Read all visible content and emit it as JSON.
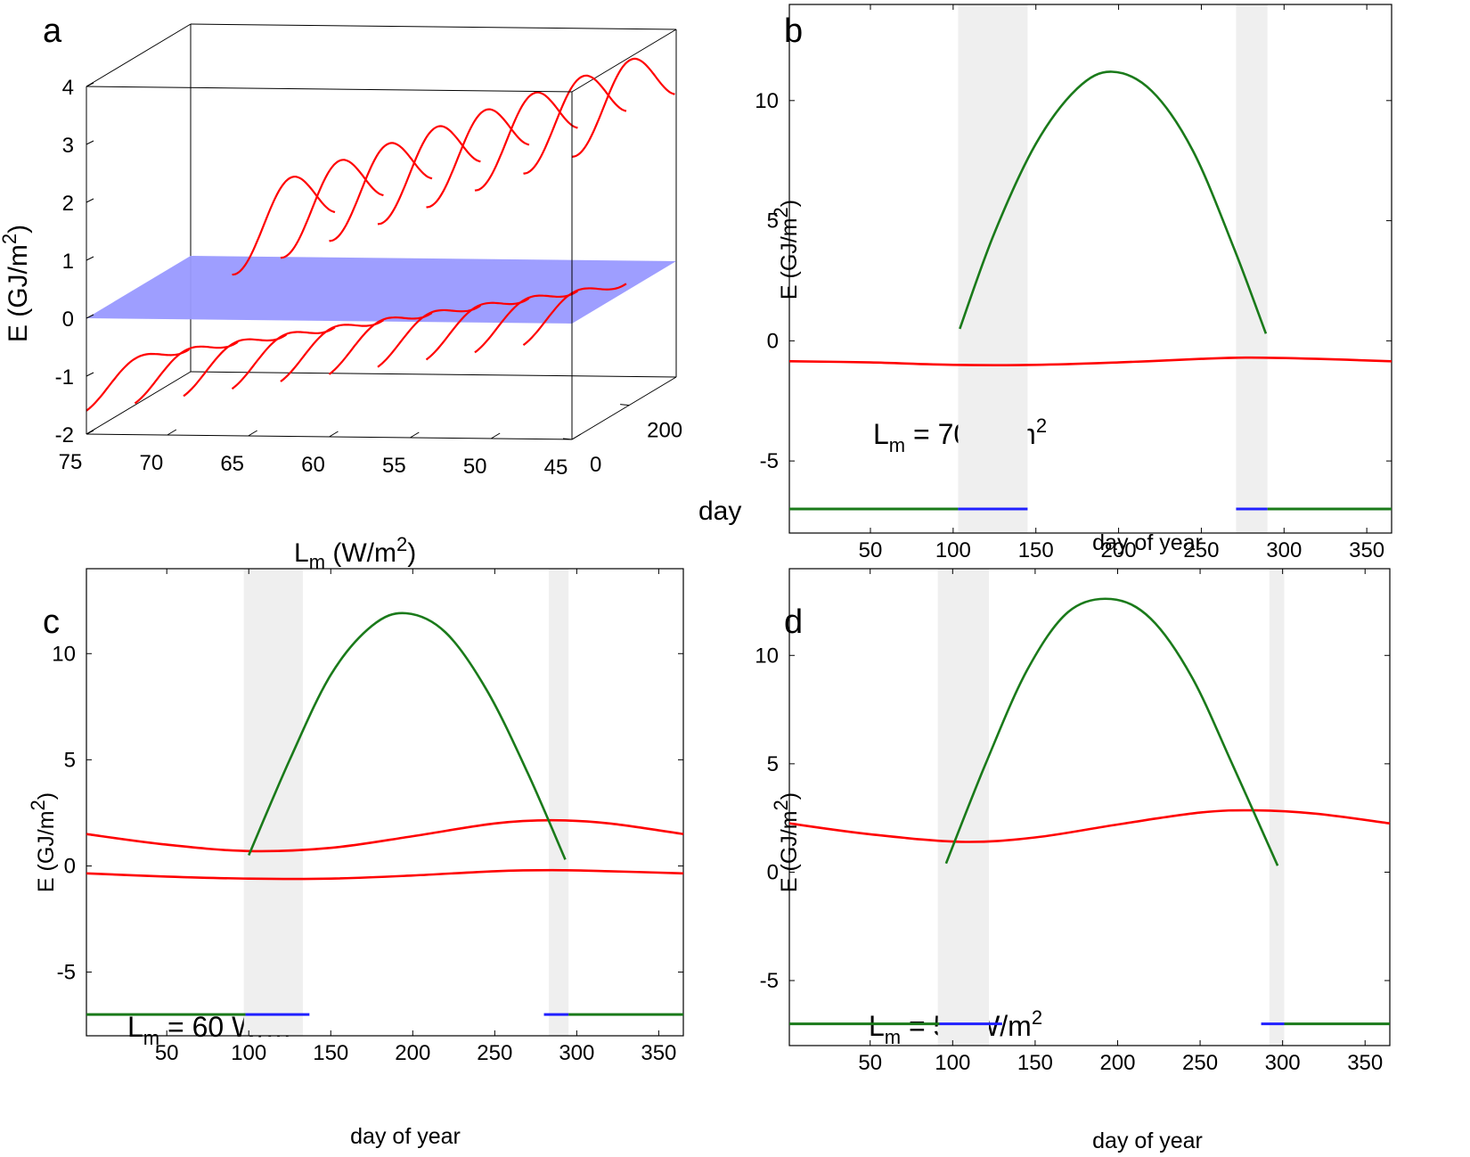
{
  "figure": {
    "panel_a": {
      "letter": "a",
      "z_label": "E (GJ/m",
      "z_label_sup": "2",
      "z_label_end": ")",
      "x_label_main": "L",
      "x_label_sub": "m",
      "x_label_rest": " (W/m",
      "x_label_sup": "2",
      "x_label_end": ")",
      "y_label": "day"
    },
    "panel_b": {
      "letter": "b",
      "ylabel_main": "E (GJ/m",
      "ylabel_sup": "2",
      "ylabel_end": ")",
      "xlabel": "day of year",
      "annot_main": "L",
      "annot_sub": "m",
      "annot_rest": " = 70 W/m",
      "annot_sup": "2"
    },
    "panel_c": {
      "letter": "c",
      "ylabel_main": "E (GJ/m",
      "ylabel_sup": "2",
      "ylabel_end": ")",
      "xlabel": "day of year",
      "annot_main": "L",
      "annot_sub": "m",
      "annot_rest": " = 60 W/m",
      "annot_sup": "2"
    },
    "panel_d": {
      "letter": "d",
      "ylabel_main": "E (GJ/m",
      "ylabel_sup": "2",
      "ylabel_end": ")",
      "xlabel": "day of year",
      "annot_main": "L",
      "annot_sub": "m",
      "annot_rest": " = 50 W/m",
      "annot_sup": "2"
    }
  },
  "colors": {
    "red": "#ff0000",
    "green": "#1a7a1a",
    "blue": "#2020ff",
    "plane": "#9999ff",
    "shade": "#efefef"
  },
  "chart_data": [
    {
      "panel": "a",
      "type": "line",
      "x_ticks": [
        75,
        70,
        65,
        60,
        55,
        50,
        45
      ],
      "y_ticks": [
        0,
        200
      ],
      "z_ticks": [
        -2,
        -1,
        0,
        1,
        2,
        3,
        4
      ],
      "xlim": [
        75,
        45
      ],
      "ylim": [
        0,
        365
      ],
      "zlim": [
        -2,
        4
      ],
      "plane_z": 0,
      "lower_branch_Lm": [
        75,
        72,
        69,
        66,
        63,
        60,
        57,
        54,
        51,
        48
      ],
      "upper_branch_Lm": [
        66,
        63,
        60,
        57,
        54,
        51,
        48,
        45
      ]
    },
    {
      "panel": "b",
      "type": "line",
      "x_ticks": [
        50,
        100,
        150,
        200,
        250,
        300,
        350
      ],
      "y_ticks": [
        -5,
        0,
        5,
        10
      ],
      "xlim": [
        1,
        365
      ],
      "ylim": [
        -8,
        14
      ],
      "shaded_days": [
        [
          103,
          145
        ],
        [
          271,
          290
        ]
      ],
      "series": [
        {
          "color": "red",
          "x": [
            1,
            50,
            100,
            150,
            200,
            250,
            280,
            320,
            365
          ],
          "y": [
            -0.85,
            -0.9,
            -1.0,
            -1.0,
            -0.9,
            -0.75,
            -0.7,
            -0.75,
            -0.85
          ]
        },
        {
          "color": "green",
          "x": [
            104,
            125,
            150,
            175,
            196,
            220,
            245,
            270,
            289
          ],
          "y": [
            0.5,
            4.5,
            8.2,
            10.5,
            11.2,
            10.4,
            7.9,
            3.8,
            0.3
          ]
        }
      ],
      "season_bar": [
        {
          "color": "green",
          "from": 1,
          "to": 103
        },
        {
          "color": "blue",
          "from": 103,
          "to": 145
        },
        {
          "color": "blue",
          "from": 271,
          "to": 290
        },
        {
          "color": "green",
          "from": 290,
          "to": 365
        }
      ],
      "season_bar_y": -7
    },
    {
      "panel": "c",
      "type": "line",
      "x_ticks": [
        50,
        100,
        150,
        200,
        250,
        300,
        350
      ],
      "y_ticks": [
        -5,
        0,
        5,
        10
      ],
      "xlim": [
        1,
        365
      ],
      "ylim": [
        -8,
        14
      ],
      "shaded_days": [
        [
          97,
          133
        ],
        [
          283,
          295
        ]
      ],
      "series": [
        {
          "color": "red",
          "x": [
            1,
            50,
            100,
            150,
            200,
            250,
            285,
            320,
            365
          ],
          "y": [
            1.5,
            1.0,
            0.7,
            0.85,
            1.4,
            2.0,
            2.15,
            2.0,
            1.5
          ]
        },
        {
          "color": "red",
          "x": [
            1,
            50,
            100,
            150,
            200,
            250,
            285,
            320,
            365
          ],
          "y": [
            -0.35,
            -0.5,
            -0.6,
            -0.6,
            -0.45,
            -0.25,
            -0.2,
            -0.25,
            -0.35
          ]
        },
        {
          "color": "green",
          "x": [
            100,
            125,
            150,
            175,
            196,
            220,
            245,
            270,
            293
          ],
          "y": [
            0.5,
            5.0,
            9.0,
            11.3,
            11.9,
            11.0,
            8.3,
            4.4,
            0.3
          ]
        }
      ],
      "season_bar": [
        {
          "color": "green",
          "from": 1,
          "to": 98
        },
        {
          "color": "blue",
          "from": 98,
          "to": 137
        },
        {
          "color": "blue",
          "from": 280,
          "to": 295
        },
        {
          "color": "green",
          "from": 295,
          "to": 365
        }
      ],
      "season_bar_y": -7
    },
    {
      "panel": "d",
      "type": "line",
      "x_ticks": [
        50,
        100,
        150,
        200,
        250,
        300,
        350
      ],
      "y_ticks": [
        -5,
        0,
        5,
        10
      ],
      "xlim": [
        1,
        365
      ],
      "ylim": [
        -8,
        14
      ],
      "shaded_days": [
        [
          91,
          122
        ],
        [
          292,
          301
        ]
      ],
      "series": [
        {
          "color": "red",
          "x": [
            1,
            50,
            105,
            150,
            200,
            250,
            283,
            320,
            365
          ],
          "y": [
            2.25,
            1.75,
            1.4,
            1.6,
            2.2,
            2.75,
            2.85,
            2.7,
            2.25
          ]
        },
        {
          "color": "green",
          "x": [
            96,
            120,
            145,
            170,
            196,
            220,
            245,
            270,
            297
          ],
          "y": [
            0.4,
            5.0,
            9.3,
            12.0,
            12.6,
            11.7,
            9.0,
            4.9,
            0.3
          ]
        }
      ],
      "season_bar": [
        {
          "color": "green",
          "from": 1,
          "to": 92
        },
        {
          "color": "blue",
          "from": 92,
          "to": 130
        },
        {
          "color": "blue",
          "from": 287,
          "to": 301
        },
        {
          "color": "green",
          "from": 301,
          "to": 365
        }
      ],
      "season_bar_y": -7
    }
  ]
}
